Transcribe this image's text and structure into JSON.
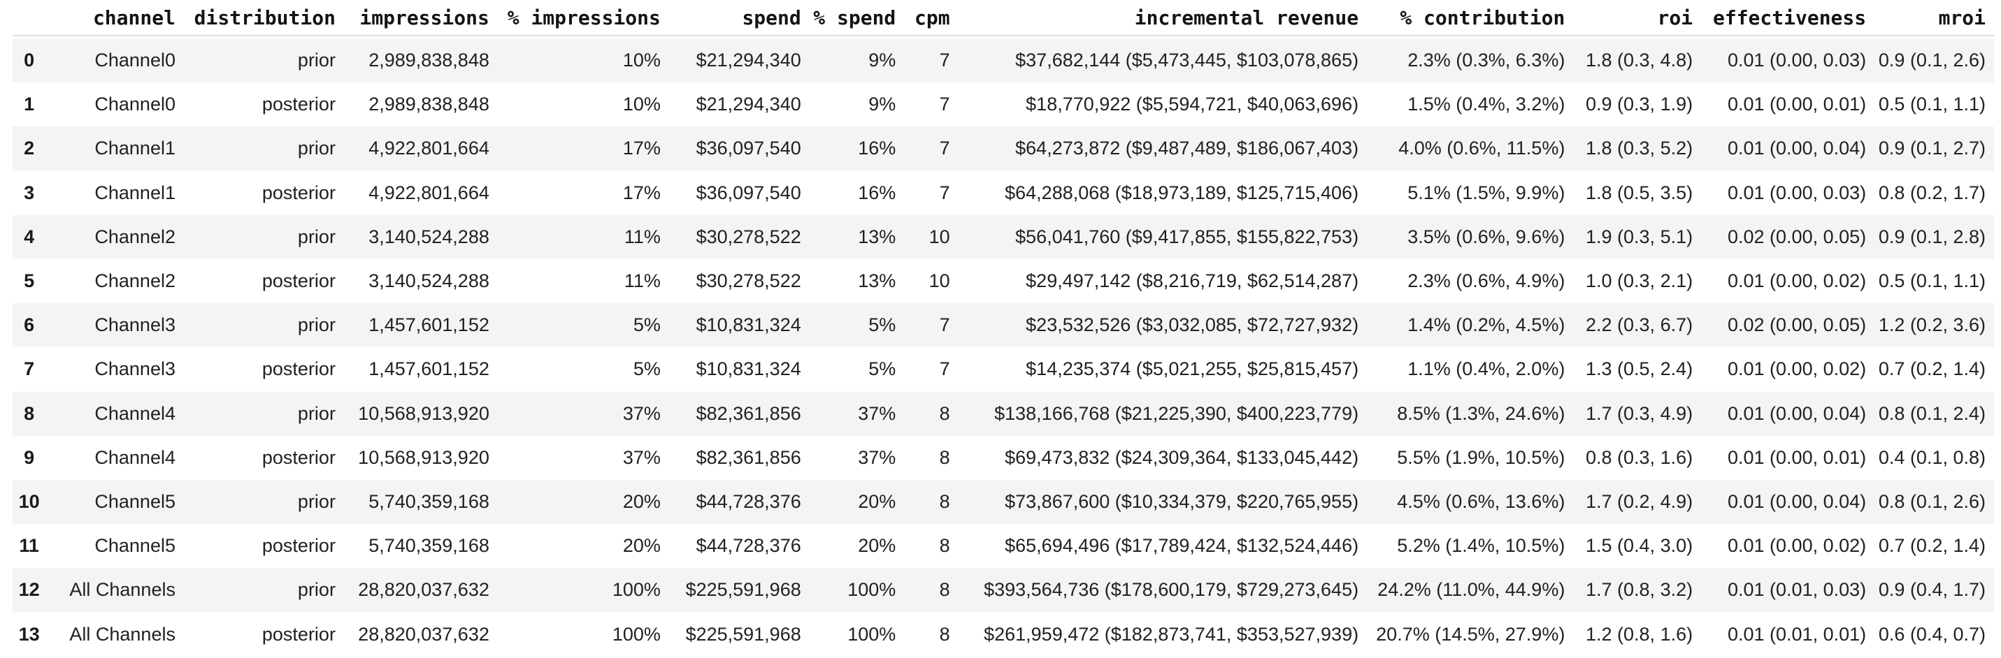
{
  "colors": {
    "background": "#ffffff",
    "stripe": "#f4f4f4",
    "header_border": "#dedede",
    "body_text": "#202124",
    "header_text": "#141414"
  },
  "table": {
    "columns": [
      "",
      "channel",
      "distribution",
      "impressions",
      "% impressions",
      "spend",
      "% spend",
      "cpm",
      "incremental revenue",
      "% contribution",
      "roi",
      "effectiveness",
      "mroi"
    ],
    "rows": [
      [
        "0",
        "Channel0",
        "prior",
        "2,989,838,848",
        "10%",
        "$21,294,340",
        "9%",
        "7",
        "$37,682,144 ($5,473,445, $103,078,865)",
        "2.3% (0.3%, 6.3%)",
        "1.8 (0.3, 4.8)",
        "0.01 (0.00, 0.03)",
        "0.9 (0.1, 2.6)"
      ],
      [
        "1",
        "Channel0",
        "posterior",
        "2,989,838,848",
        "10%",
        "$21,294,340",
        "9%",
        "7",
        "$18,770,922 ($5,594,721, $40,063,696)",
        "1.5% (0.4%, 3.2%)",
        "0.9 (0.3, 1.9)",
        "0.01 (0.00, 0.01)",
        "0.5 (0.1, 1.1)"
      ],
      [
        "2",
        "Channel1",
        "prior",
        "4,922,801,664",
        "17%",
        "$36,097,540",
        "16%",
        "7",
        "$64,273,872 ($9,487,489, $186,067,403)",
        "4.0% (0.6%, 11.5%)",
        "1.8 (0.3, 5.2)",
        "0.01 (0.00, 0.04)",
        "0.9 (0.1, 2.7)"
      ],
      [
        "3",
        "Channel1",
        "posterior",
        "4,922,801,664",
        "17%",
        "$36,097,540",
        "16%",
        "7",
        "$64,288,068 ($18,973,189, $125,715,406)",
        "5.1% (1.5%, 9.9%)",
        "1.8 (0.5, 3.5)",
        "0.01 (0.00, 0.03)",
        "0.8 (0.2, 1.7)"
      ],
      [
        "4",
        "Channel2",
        "prior",
        "3,140,524,288",
        "11%",
        "$30,278,522",
        "13%",
        "10",
        "$56,041,760 ($9,417,855, $155,822,753)",
        "3.5% (0.6%, 9.6%)",
        "1.9 (0.3, 5.1)",
        "0.02 (0.00, 0.05)",
        "0.9 (0.1, 2.8)"
      ],
      [
        "5",
        "Channel2",
        "posterior",
        "3,140,524,288",
        "11%",
        "$30,278,522",
        "13%",
        "10",
        "$29,497,142 ($8,216,719, $62,514,287)",
        "2.3% (0.6%, 4.9%)",
        "1.0 (0.3, 2.1)",
        "0.01 (0.00, 0.02)",
        "0.5 (0.1, 1.1)"
      ],
      [
        "6",
        "Channel3",
        "prior",
        "1,457,601,152",
        "5%",
        "$10,831,324",
        "5%",
        "7",
        "$23,532,526 ($3,032,085, $72,727,932)",
        "1.4% (0.2%, 4.5%)",
        "2.2 (0.3, 6.7)",
        "0.02 (0.00, 0.05)",
        "1.2 (0.2, 3.6)"
      ],
      [
        "7",
        "Channel3",
        "posterior",
        "1,457,601,152",
        "5%",
        "$10,831,324",
        "5%",
        "7",
        "$14,235,374 ($5,021,255, $25,815,457)",
        "1.1% (0.4%, 2.0%)",
        "1.3 (0.5, 2.4)",
        "0.01 (0.00, 0.02)",
        "0.7 (0.2, 1.4)"
      ],
      [
        "8",
        "Channel4",
        "prior",
        "10,568,913,920",
        "37%",
        "$82,361,856",
        "37%",
        "8",
        "$138,166,768 ($21,225,390, $400,223,779)",
        "8.5% (1.3%, 24.6%)",
        "1.7 (0.3, 4.9)",
        "0.01 (0.00, 0.04)",
        "0.8 (0.1, 2.4)"
      ],
      [
        "9",
        "Channel4",
        "posterior",
        "10,568,913,920",
        "37%",
        "$82,361,856",
        "37%",
        "8",
        "$69,473,832 ($24,309,364, $133,045,442)",
        "5.5% (1.9%, 10.5%)",
        "0.8 (0.3, 1.6)",
        "0.01 (0.00, 0.01)",
        "0.4 (0.1, 0.8)"
      ],
      [
        "10",
        "Channel5",
        "prior",
        "5,740,359,168",
        "20%",
        "$44,728,376",
        "20%",
        "8",
        "$73,867,600 ($10,334,379, $220,765,955)",
        "4.5% (0.6%, 13.6%)",
        "1.7 (0.2, 4.9)",
        "0.01 (0.00, 0.04)",
        "0.8 (0.1, 2.6)"
      ],
      [
        "11",
        "Channel5",
        "posterior",
        "5,740,359,168",
        "20%",
        "$44,728,376",
        "20%",
        "8",
        "$65,694,496 ($17,789,424, $132,524,446)",
        "5.2% (1.4%, 10.5%)",
        "1.5 (0.4, 3.0)",
        "0.01 (0.00, 0.02)",
        "0.7 (0.2, 1.4)"
      ],
      [
        "12",
        "All Channels",
        "prior",
        "28,820,037,632",
        "100%",
        "$225,591,968",
        "100%",
        "8",
        "$393,564,736 ($178,600,179, $729,273,645)",
        "24.2% (11.0%, 44.9%)",
        "1.7 (0.8, 3.2)",
        "0.01 (0.01, 0.03)",
        "0.9 (0.4, 1.7)"
      ],
      [
        "13",
        "All Channels",
        "posterior",
        "28,820,037,632",
        "100%",
        "$225,591,968",
        "100%",
        "8",
        "$261,959,472 ($182,873,741, $353,527,939)",
        "20.7% (14.5%, 27.9%)",
        "1.2 (0.8, 1.6)",
        "0.01 (0.01, 0.01)",
        "0.6 (0.4, 0.7)"
      ]
    ]
  }
}
